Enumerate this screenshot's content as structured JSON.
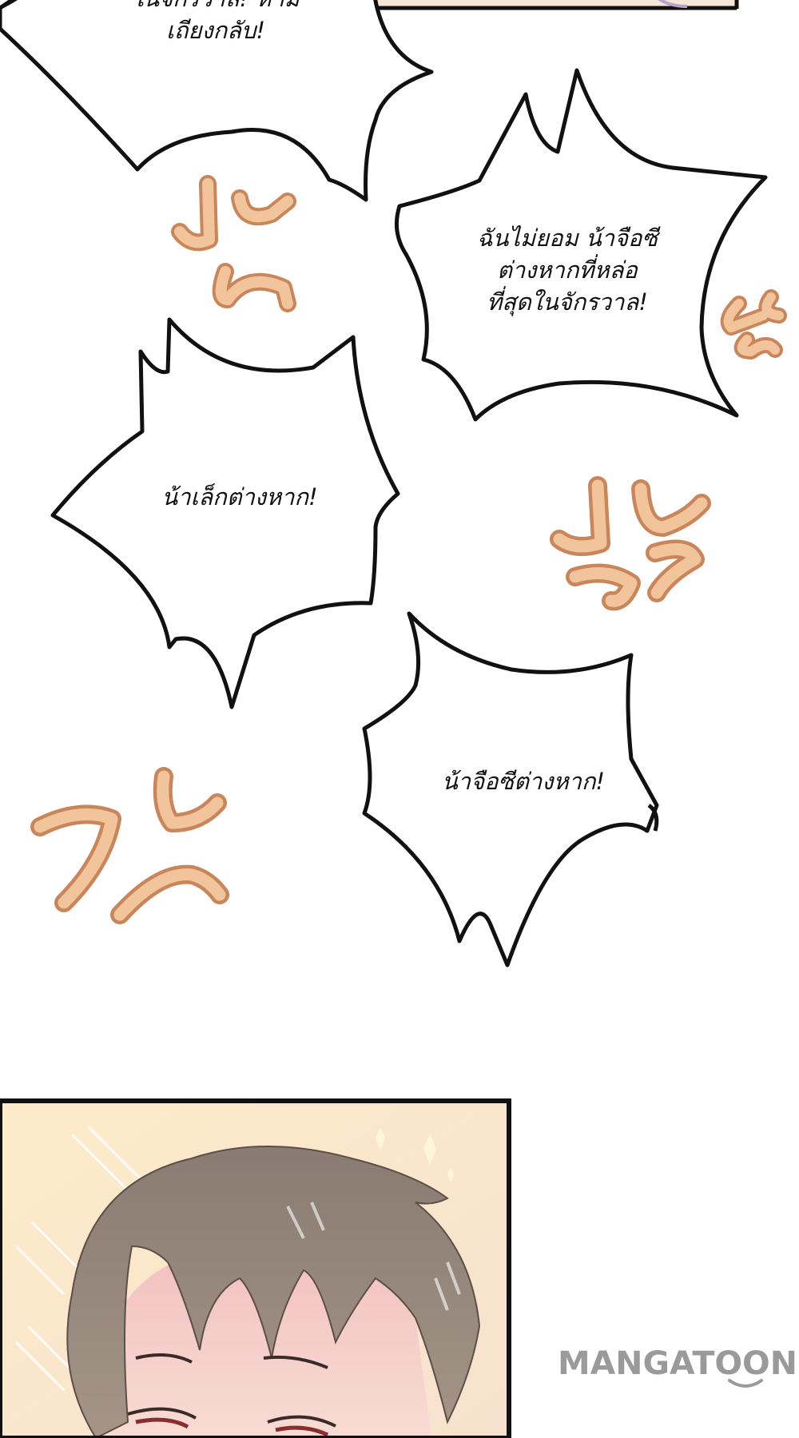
{
  "bubbles": {
    "top_partial": {
      "line1": "ในจักรวาล! ห้าม",
      "line2": "เถียงกลับ!"
    },
    "right": {
      "line1": "ฉันไม่ยอม น้าจือซี",
      "line2": "ต่างหากที่หล่อ",
      "line3": "ที่สุดในจักรวาล!"
    },
    "left": {
      "line1": "น้าเล็กต่างหาก!"
    },
    "bottom": {
      "line1": "น้าจือซีต่างหาก!"
    }
  },
  "watermark": {
    "text": "MANGATOON"
  },
  "colors": {
    "anger_mark_fill": "#f2c49c",
    "anger_mark_stroke": "#cc8a5c",
    "panel_bg": "#fbe7c6",
    "hair": "#8e8078",
    "outline": "#111111",
    "watermark": "#9a9a9a"
  },
  "icons": {
    "anger_mark": "anger-vein-icon",
    "watermark_smile": "smile-curve-icon"
  }
}
